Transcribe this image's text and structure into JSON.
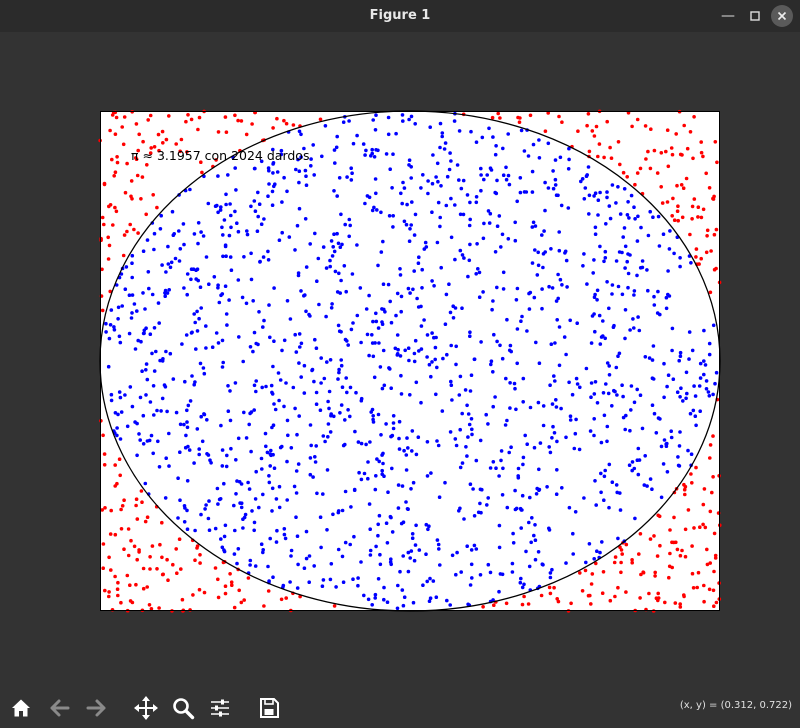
{
  "window": {
    "title": "Figure 1"
  },
  "chart_data": {
    "type": "scatter",
    "title": "",
    "annotation": "π ≈ 3.1957 con 2024 dardos",
    "n_darts": 2024,
    "pi_estimate": 3.1957,
    "xlim": [
      -1,
      1
    ],
    "ylim": [
      -1,
      1
    ],
    "circle": {
      "center": [
        0,
        0
      ],
      "radius": 1,
      "color": "#000000"
    },
    "axis_ticks_visible": false,
    "grid": false,
    "series": [
      {
        "label_color": "inside",
        "color": "#0000ff"
      },
      {
        "label_color": "outside",
        "color": "#ff0000"
      }
    ]
  },
  "toolbar": {
    "icons": [
      "home-icon",
      "back-arrow-icon",
      "forward-arrow-icon",
      "pan-icon",
      "zoom-icon",
      "configure-subplots-icon",
      "save-icon"
    ]
  },
  "status": {
    "coords": "(x, y) = (0.312, 0.722)"
  }
}
